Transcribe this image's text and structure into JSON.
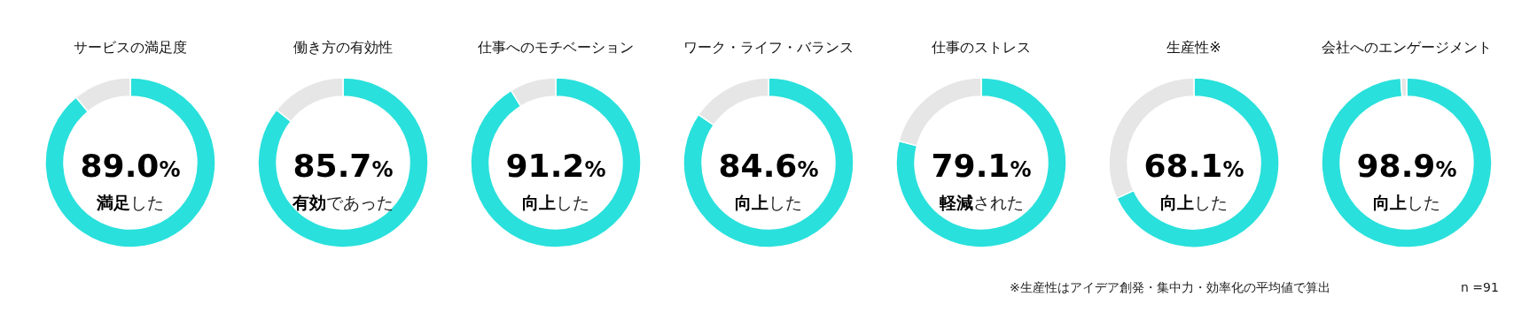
{
  "chart_data": [
    {
      "type": "donut",
      "title": "サービスの満足度",
      "categories": [
        null,
        null
      ],
      "values": [
        89.0,
        11.0
      ],
      "colors": [
        "#29e0dc",
        "#e6e6e6"
      ],
      "value_labels": [
        "89.0%",
        null
      ],
      "annotations": [
        "満足",
        "した"
      ]
    },
    {
      "type": "donut",
      "title": "働き方の有効性",
      "categories": [
        null,
        null
      ],
      "values": [
        85.7,
        14.3
      ],
      "colors": [
        "#29e0dc",
        "#e6e6e6"
      ],
      "value_labels": [
        "85.7%",
        null
      ],
      "annotations": [
        "有効",
        "であった"
      ]
    },
    {
      "type": "donut",
      "title": "仕事へのモチベーション",
      "categories": [
        null,
        null
      ],
      "values": [
        91.2,
        8.8
      ],
      "colors": [
        "#29e0dc",
        "#e6e6e6"
      ],
      "value_labels": [
        "91.2%",
        null
      ],
      "annotations": [
        "向上",
        "した"
      ]
    },
    {
      "type": "donut",
      "title": "ワーク・ライフ・バランス",
      "categories": [
        null,
        null
      ],
      "values": [
        84.6,
        15.4
      ],
      "colors": [
        "#29e0dc",
        "#e6e6e6"
      ],
      "value_labels": [
        "84.6%",
        null
      ],
      "annotations": [
        "向上",
        "した"
      ]
    },
    {
      "type": "donut",
      "title": "仕事のストレス",
      "categories": [
        null,
        null
      ],
      "values": [
        79.1,
        20.9
      ],
      "colors": [
        "#29e0dc",
        "#e6e6e6"
      ],
      "value_labels": [
        "79.1%",
        null
      ],
      "annotations": [
        "軽減",
        "された"
      ]
    },
    {
      "type": "donut",
      "title": "生産性※",
      "categories": [
        null,
        null
      ],
      "values": [
        68.1,
        31.9
      ],
      "colors": [
        "#29e0dc",
        "#e6e6e6"
      ],
      "value_labels": [
        "68.1%",
        null
      ],
      "annotations": [
        "向上",
        "した"
      ]
    },
    {
      "type": "donut",
      "title": "会社へのエンゲージメント",
      "categories": [
        null,
        null
      ],
      "values": [
        98.9,
        1.1
      ],
      "colors": [
        "#29e0dc",
        "#e6e6e6"
      ],
      "value_labels": [
        "98.9%",
        null
      ],
      "annotations": [
        "向上",
        "した"
      ]
    },
    {
      "type": "other",
      "annotations": [
        "※生産性はアイデア創発・集中力・効率化の平均値で算出",
        "n =91"
      ]
    }
  ]
}
